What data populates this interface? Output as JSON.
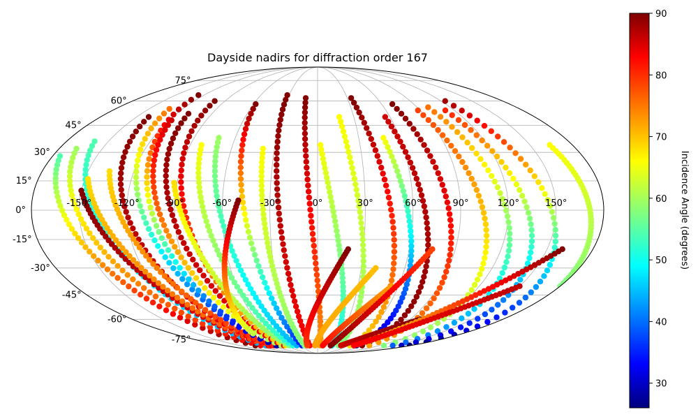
{
  "chart_data": {
    "type": "scatter",
    "projection": "mollweide",
    "title": "Dayside nadirs for diffraction order 167",
    "xlabel": "",
    "ylabel": "",
    "longitude_ticks": [
      {
        "value": -150,
        "label": "-150°"
      },
      {
        "value": -120,
        "label": "-120°"
      },
      {
        "value": -90,
        "label": "-90°"
      },
      {
        "value": -60,
        "label": "-60°"
      },
      {
        "value": -30,
        "label": "-30°"
      },
      {
        "value": 0,
        "label": "0°"
      },
      {
        "value": 30,
        "label": "30°"
      },
      {
        "value": 60,
        "label": "60°"
      },
      {
        "value": 90,
        "label": "90°"
      },
      {
        "value": 120,
        "label": "120°"
      },
      {
        "value": 150,
        "label": "150°"
      }
    ],
    "latitude_ticks": [
      {
        "value": 75,
        "label": "75°"
      },
      {
        "value": 60,
        "label": "60°"
      },
      {
        "value": 45,
        "label": "45°"
      },
      {
        "value": 30,
        "label": "30°"
      },
      {
        "value": 15,
        "label": "15°"
      },
      {
        "value": 0,
        "label": "0°"
      },
      {
        "value": -15,
        "label": "-15°"
      },
      {
        "value": -30,
        "label": "-30°"
      },
      {
        "value": -45,
        "label": "-45°"
      },
      {
        "value": -60,
        "label": "-60°"
      },
      {
        "value": -75,
        "label": "-75°"
      }
    ],
    "grid": true,
    "colormap": "jet",
    "colorbar": {
      "label": "Incidence Angle (degrees)",
      "range": [
        26,
        90
      ],
      "ticks": [
        {
          "value": 30,
          "label": "30"
        },
        {
          "value": 40,
          "label": "40"
        },
        {
          "value": 50,
          "label": "50"
        },
        {
          "value": 60,
          "label": "60"
        },
        {
          "value": 70,
          "label": "70"
        },
        {
          "value": 80,
          "label": "80"
        },
        {
          "value": 90,
          "label": "90"
        }
      ]
    },
    "tracks": [
      {
        "lon0": -175,
        "lat0": 28,
        "lon1": -120,
        "lat1": -80,
        "i0": 55,
        "i1": 90
      },
      {
        "lon0": -168,
        "lat0": 32,
        "lon1": -110,
        "lat1": -80,
        "i0": 60,
        "i1": 82
      },
      {
        "lon0": -160,
        "lat0": 36,
        "lon1": -100,
        "lat1": -80,
        "i0": 55,
        "i1": 45
      },
      {
        "lon0": -150,
        "lat0": 10,
        "lon1": -95,
        "lat1": -80,
        "i0": 90,
        "i1": 82
      },
      {
        "lon0": -148,
        "lat0": 16,
        "lon1": -92,
        "lat1": -80,
        "i0": 68,
        "i1": 78
      },
      {
        "lon0": -140,
        "lat0": 50,
        "lon1": -90,
        "lat1": -80,
        "i0": 90,
        "i1": 82
      },
      {
        "lon0": -136,
        "lat0": 20,
        "lon1": -85,
        "lat1": -80,
        "i0": 68,
        "i1": 80
      },
      {
        "lon0": -132,
        "lat0": 55,
        "lon1": -80,
        "lat1": -80,
        "i0": 75,
        "i1": 30
      },
      {
        "lon0": -126,
        "lat0": 64,
        "lon1": -78,
        "lat1": -80,
        "i0": 90,
        "i1": 28
      },
      {
        "lon0": -118,
        "lat0": 48,
        "lon1": -70,
        "lat1": -80,
        "i0": 85,
        "i1": 60
      },
      {
        "lon0": -110,
        "lat0": 52,
        "lon1": -65,
        "lat1": -80,
        "i0": 90,
        "i1": 82
      },
      {
        "lon0": -100,
        "lat0": 60,
        "lon1": -62,
        "lat1": -80,
        "i0": 90,
        "i1": 68
      },
      {
        "lon0": -92,
        "lat0": 14,
        "lon1": -55,
        "lat1": -80,
        "i0": 68,
        "i1": 58
      },
      {
        "lon0": -82,
        "lat0": 34,
        "lon1": -48,
        "lat1": -80,
        "i0": 66,
        "i1": 52
      },
      {
        "lon0": -72,
        "lat0": 38,
        "lon1": -40,
        "lat1": -80,
        "i0": 60,
        "i1": 45
      },
      {
        "lon0": -58,
        "lat0": 58,
        "lon1": -30,
        "lat1": -80,
        "i0": 90,
        "i1": 35
      },
      {
        "lon0": -38,
        "lat0": 32,
        "lon1": -25,
        "lat1": -80,
        "i0": 66,
        "i1": 58
      },
      {
        "lon0": -32,
        "lat0": 64,
        "lon1": -15,
        "lat1": -80,
        "i0": 90,
        "i1": 82
      },
      {
        "lon0": -12,
        "lat0": 62,
        "lon1": 5,
        "lat1": -80,
        "i0": 90,
        "i1": 72
      },
      {
        "lon0": 2,
        "lat0": 34,
        "lon1": 28,
        "lat1": -80,
        "i0": 66,
        "i1": 50
      },
      {
        "lon0": 18,
        "lat0": 50,
        "lon1": 40,
        "lat1": -80,
        "i0": 66,
        "i1": 58
      },
      {
        "lon0": 34,
        "lat0": 62,
        "lon1": 62,
        "lat1": -80,
        "i0": 90,
        "i1": 68
      },
      {
        "lon0": 48,
        "lat0": 38,
        "lon1": 75,
        "lat1": -80,
        "i0": 66,
        "i1": 28
      },
      {
        "lon0": 56,
        "lat0": 50,
        "lon1": 86,
        "lat1": -80,
        "i0": 85,
        "i1": 90
      },
      {
        "lon0": 70,
        "lat0": 58,
        "lon1": 100,
        "lat1": -80,
        "i0": 90,
        "i1": 72
      },
      {
        "lon0": 88,
        "lat0": 54,
        "lon1": 128,
        "lat1": -80,
        "i0": 78,
        "i1": 58
      },
      {
        "lon0": 100,
        "lat0": 56,
        "lon1": 145,
        "lat1": -80,
        "i0": 75,
        "i1": 40
      },
      {
        "lon0": 112,
        "lat0": 54,
        "lon1": 162,
        "lat1": -80,
        "i0": 80,
        "i1": 30
      },
      {
        "lon0": 124,
        "lat0": 60,
        "lon1": 178,
        "lat1": -80,
        "i0": 88,
        "i1": 26
      },
      {
        "lon0": 164,
        "lat0": 34,
        "lon1": 180,
        "lat1": -40,
        "i0": 66,
        "i1": 58
      },
      {
        "lon0": -20,
        "lat0": -80,
        "lon1": 20,
        "lat1": -20,
        "i0": 78,
        "i1": 90
      },
      {
        "lon0": -5,
        "lat0": -80,
        "lon1": 40,
        "lat1": -30,
        "i0": 72,
        "i1": 70
      },
      {
        "lon0": 10,
        "lat0": -80,
        "lon1": 55,
        "lat1": -40,
        "i0": 82,
        "i1": 72
      },
      {
        "lon0": 25,
        "lat0": -80,
        "lon1": 75,
        "lat1": -20,
        "i0": 90,
        "i1": 78
      },
      {
        "lon0": 45,
        "lat0": -80,
        "lon1": 100,
        "lat1": -60,
        "i0": 85,
        "i1": 90
      },
      {
        "lon0": 80,
        "lat0": -75,
        "lon1": 160,
        "lat1": -20,
        "i0": 68,
        "i1": 90
      },
      {
        "lon0": 70,
        "lat0": -80,
        "lon1": 150,
        "lat1": -40,
        "i0": 82,
        "i1": 86
      },
      {
        "lon0": -80,
        "lat0": -70,
        "lon1": -50,
        "lat1": 5,
        "i0": 62,
        "i1": 90
      }
    ]
  }
}
